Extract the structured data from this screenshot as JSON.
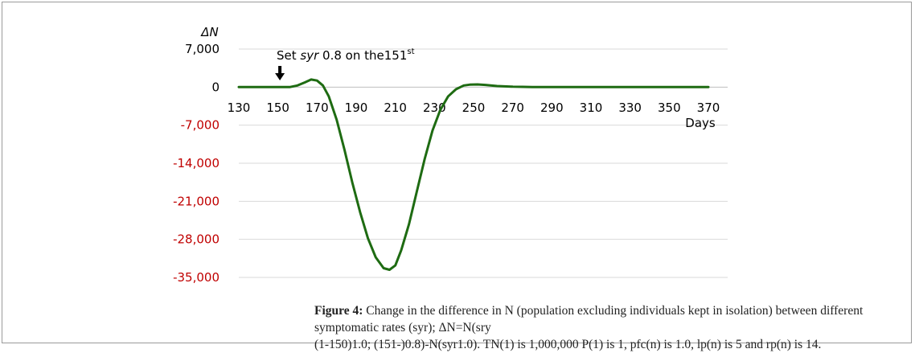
{
  "chart_data": {
    "type": "line",
    "ylabel": "ΔN",
    "xlabel": "Days",
    "xlim": [
      130,
      370
    ],
    "ylim": [
      -35000,
      7000
    ],
    "x_ticks": [
      "130",
      "150",
      "170",
      "190",
      "210",
      "230",
      "250",
      "270",
      "290",
      "310",
      "330",
      "350",
      "370"
    ],
    "y_ticks": [
      "7,000",
      "0",
      "-7,000",
      "-14,000",
      "-21,000",
      "-28,000",
      "-35,000"
    ],
    "grid": true,
    "annotation": {
      "text_prefix": "Set ",
      "text_italic": "syr",
      "text_mid": " 0.8 on the151",
      "text_sup": "st",
      "day": 151
    },
    "series": [
      {
        "color": "#1e6b12",
        "x": [
          130,
          150,
          156,
          160,
          164,
          167,
          170,
          173,
          176,
          180,
          184,
          188,
          192,
          196,
          200,
          204,
          207,
          210,
          213,
          217,
          221,
          225,
          229,
          233,
          237,
          241,
          245,
          248,
          252,
          256,
          262,
          270,
          280,
          290,
          300,
          320,
          340,
          370
        ],
        "y": [
          0,
          0,
          0,
          300,
          900,
          1400,
          1200,
          300,
          -1700,
          -6000,
          -11500,
          -17500,
          -23000,
          -27800,
          -31300,
          -33300,
          -33600,
          -32800,
          -30000,
          -25200,
          -19200,
          -13200,
          -8000,
          -4200,
          -1700,
          -400,
          300,
          450,
          500,
          400,
          200,
          80,
          20,
          0,
          0,
          0,
          0,
          0
        ]
      }
    ],
    "colors": {
      "line": "#1e6b12",
      "negative_ticks": "#c00000",
      "positive_ticks": "#000000",
      "grid": "#d9d9d9"
    }
  },
  "caption": {
    "label": "Figure 4:",
    "line1": " Change in the difference in N (population excluding individuals kept in isolation) between different symptomatic rates (syr); ΔN=N(sry",
    "line2": "(1-150)1.0; (151-)0.8)-N(syr1.0). TN(1) is 1,000,000 P(1) is 1, pfc(n) is 1.0, lp(n) is 5 and rp(n) is 14."
  }
}
